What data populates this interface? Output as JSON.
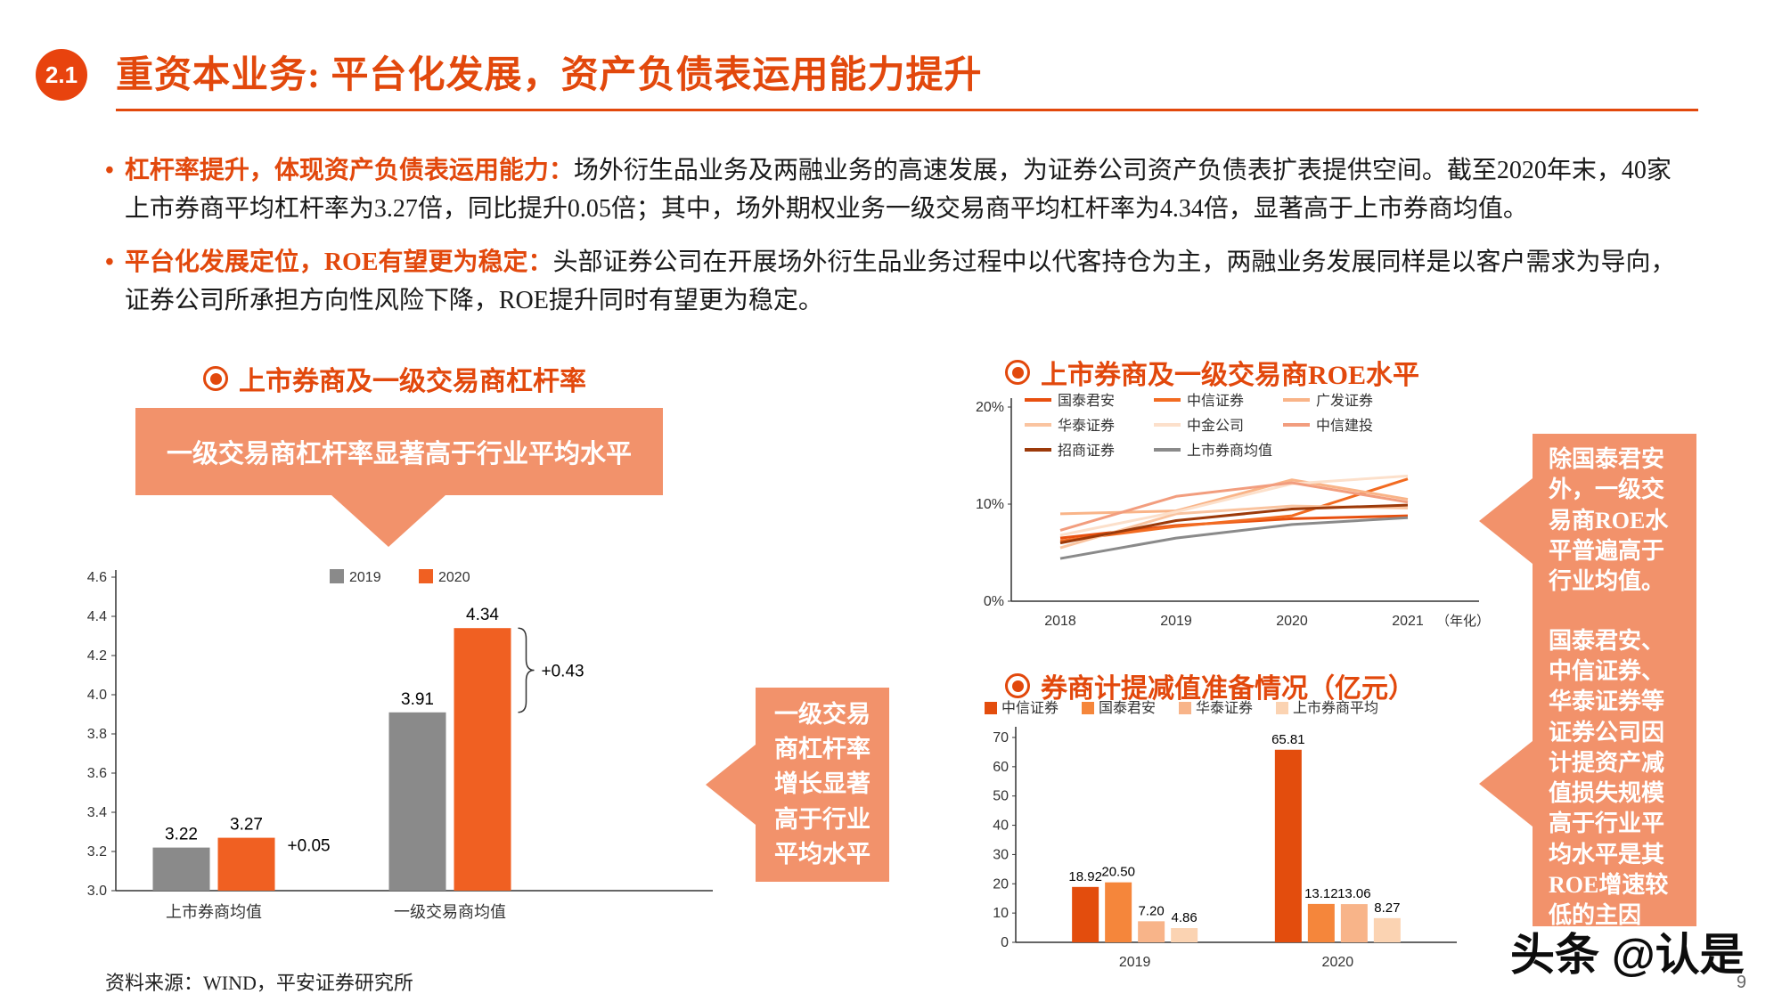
{
  "page": {
    "section_number": "2.1",
    "title": "重资本业务: 平台化发展，资产负债表运用能力提升",
    "source": "资料来源：WIND，平安证券研究所",
    "watermark": "头条 @认是",
    "page_number": "9"
  },
  "bullets": [
    {
      "lead": "杠杆率提升，体现资产负债表运用能力：",
      "text": "场外衍生品业务及两融业务的高速发展，为证券公司资产负债表扩表提供空间。截至2020年末，40家上市券商平均杠杆率为3.27倍，同比提升0.05倍；其中，场外期权业务一级交易商平均杠杆率为4.34倍，显著高于上市券商均值。"
    },
    {
      "lead": "平台化发展定位，ROE有望更为稳定：",
      "text": "头部证券公司在开展场外衍生品业务过程中以代客持仓为主，两融业务发展同样是以客户需求为导向，证券公司所承担方向性风险下降，ROE提升同时有望更为稳定。"
    }
  ],
  "callouts": {
    "leverage_top": "一级交易商杠杆率显著高于行业平均水平",
    "leverage_side": "一级交易商杠杆率增长显著高于行业平均水平",
    "roe_panel_p1": "除国泰君安外，一级交易商ROE水平普遍高于行业均值。",
    "roe_panel_p2": "国泰君安、中信证券、华泰证券等证券公司因计提资产减值损失规模高于行业平均水平是其ROE增速较低的主因"
  },
  "colors": {
    "accent": "#e2480c",
    "callout_fill": "#f2926b",
    "bar_2019_gray": "#8a8a8a",
    "bar_2020_orange": "#f06022"
  },
  "chart_data": [
    {
      "id": "leverage",
      "type": "bar",
      "title": "上市券商及一级交易商杠杆率",
      "categories": [
        "上市券商均值",
        "一级交易商均值"
      ],
      "series": [
        {
          "name": "2019",
          "color": "#8a8a8a",
          "values": [
            3.22,
            3.91
          ]
        },
        {
          "name": "2020",
          "color": "#f06022",
          "values": [
            3.27,
            4.34
          ]
        }
      ],
      "annotations": [
        "+0.05",
        "+0.43"
      ],
      "ylim": [
        3.0,
        4.6
      ],
      "yticks": [
        3.0,
        3.2,
        3.4,
        3.6,
        3.8,
        4.0,
        4.2,
        4.4,
        4.6
      ],
      "grid": false,
      "legend_position": "top-center"
    },
    {
      "id": "roe",
      "type": "line",
      "title": "上市券商及一级交易商ROE水平",
      "x": [
        "2018",
        "2019",
        "2020",
        "2021"
      ],
      "x_note": "（年化）",
      "series": [
        {
          "name": "国泰君安",
          "color": "#e8500f",
          "values": [
            6.5,
            7.8,
            8.5,
            8.8
          ]
        },
        {
          "name": "中信证券",
          "color": "#f26b21",
          "values": [
            6.2,
            7.7,
            8.8,
            12.6
          ]
        },
        {
          "name": "广发证券",
          "color": "#f9b488",
          "values": [
            9.0,
            9.3,
            12.5,
            10.5
          ]
        },
        {
          "name": "华泰证券",
          "color": "#fac4a0",
          "values": [
            5.5,
            9.0,
            9.8,
            9.6
          ]
        },
        {
          "name": "中金公司",
          "color": "#fce0cb",
          "values": [
            6.8,
            9.2,
            12.1,
            12.9
          ]
        },
        {
          "name": "中信建投",
          "color": "#f29d7e",
          "values": [
            7.3,
            10.8,
            12.2,
            10.2
          ]
        },
        {
          "name": "招商证券",
          "color": "#9c3a0a",
          "values": [
            6.0,
            8.3,
            9.5,
            9.9
          ]
        },
        {
          "name": "上市券商均值",
          "color": "#8a8a8a",
          "values": [
            4.4,
            6.5,
            7.9,
            8.6
          ]
        }
      ],
      "ylim": [
        0,
        20
      ],
      "ytick_vals": [
        0,
        10,
        20
      ],
      "yticks": [
        "0%",
        "10%",
        "20%"
      ],
      "grid": false,
      "legend_position": "top-inside"
    },
    {
      "id": "impairment",
      "type": "bar",
      "title": "券商计提减值准备情况（亿元）",
      "categories": [
        "2019",
        "2020"
      ],
      "series": [
        {
          "name": "中信证券",
          "color": "#e34d0d",
          "values": [
            18.92,
            65.81
          ]
        },
        {
          "name": "国泰君安",
          "color": "#f5863b",
          "values": [
            20.5,
            13.12
          ]
        },
        {
          "name": "华泰证券",
          "color": "#f8b489",
          "values": [
            7.2,
            13.06
          ]
        },
        {
          "name": "上市券商平均",
          "color": "#fbd3b2",
          "values": [
            4.86,
            8.27
          ]
        }
      ],
      "ylim": [
        0,
        70
      ],
      "yticks": [
        0,
        10,
        20,
        30,
        40,
        50,
        60,
        70
      ],
      "grid": false,
      "legend_position": "top"
    }
  ]
}
